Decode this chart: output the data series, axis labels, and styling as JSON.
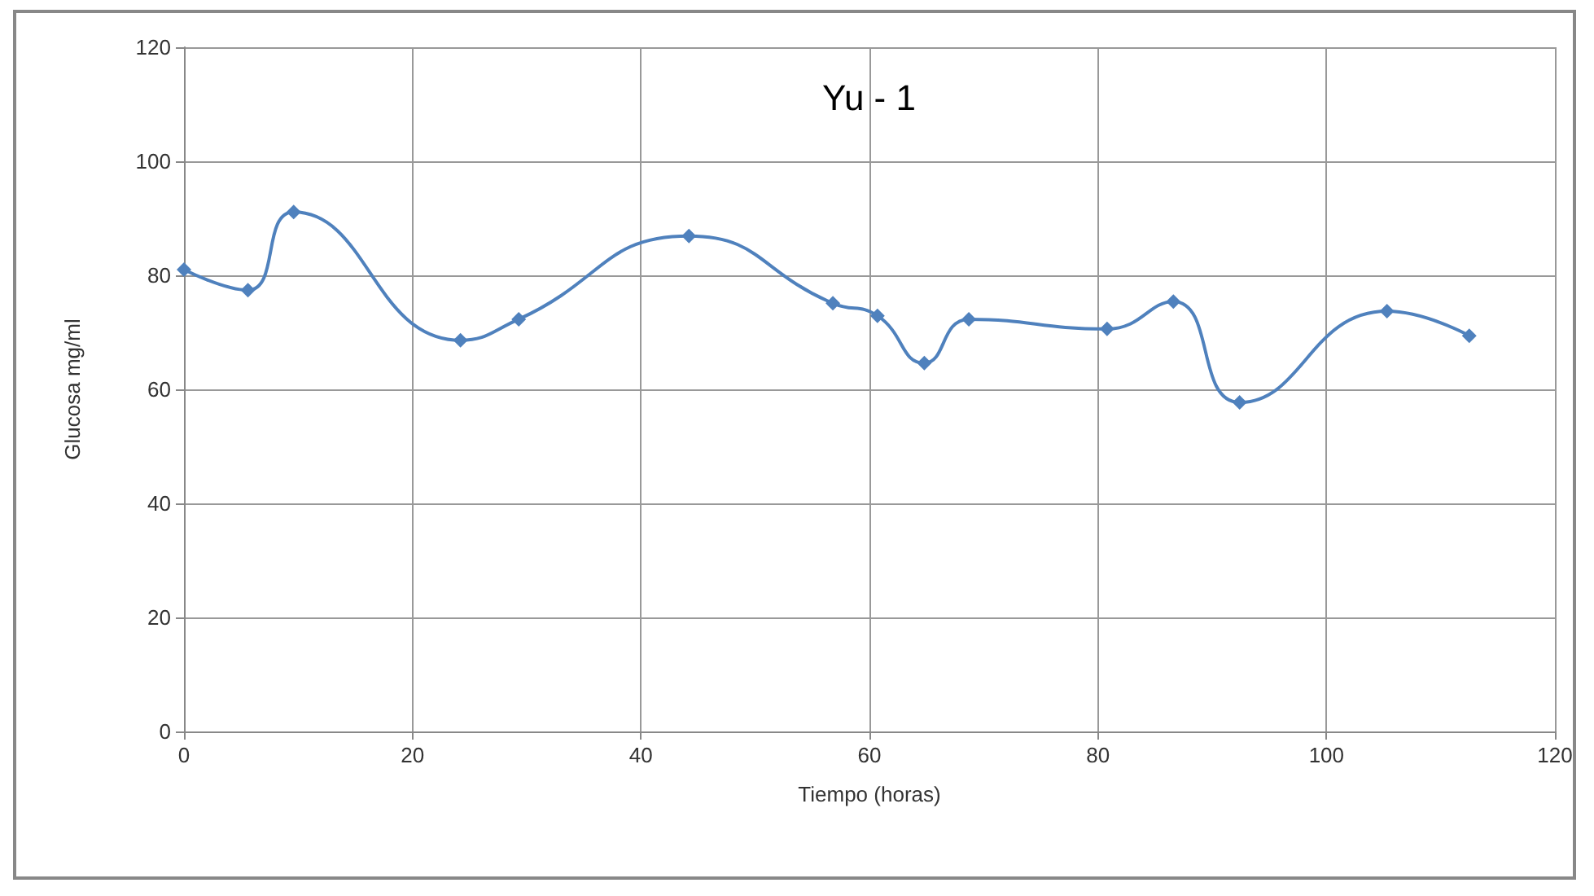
{
  "chart_data": {
    "type": "line",
    "title": "Yu - 1",
    "xlabel": "Tiempo (horas)",
    "ylabel": "Glucosa mg/ml",
    "x": [
      0,
      5.6,
      9.6,
      24.2,
      29.3,
      44.2,
      56.8,
      60.7,
      64.8,
      68.7,
      80.8,
      86.6,
      92.4,
      105.3,
      112.5
    ],
    "series": [
      {
        "color": "#4f81bd",
        "values": [
          81,
          77.4,
          91.1,
          68.6,
          72.3,
          86.9,
          75.1,
          72.9,
          64.6,
          72.3,
          70.6,
          75.4,
          57.7,
          73.7,
          69.4
        ]
      }
    ],
    "xlim": [
      0,
      120
    ],
    "xticks": [
      0,
      20,
      40,
      60,
      80,
      100,
      120
    ],
    "ylim": [
      0,
      120
    ],
    "yticks": [
      0,
      20,
      40,
      60,
      80,
      100,
      120
    ],
    "grid": true,
    "marker": "diamond"
  }
}
